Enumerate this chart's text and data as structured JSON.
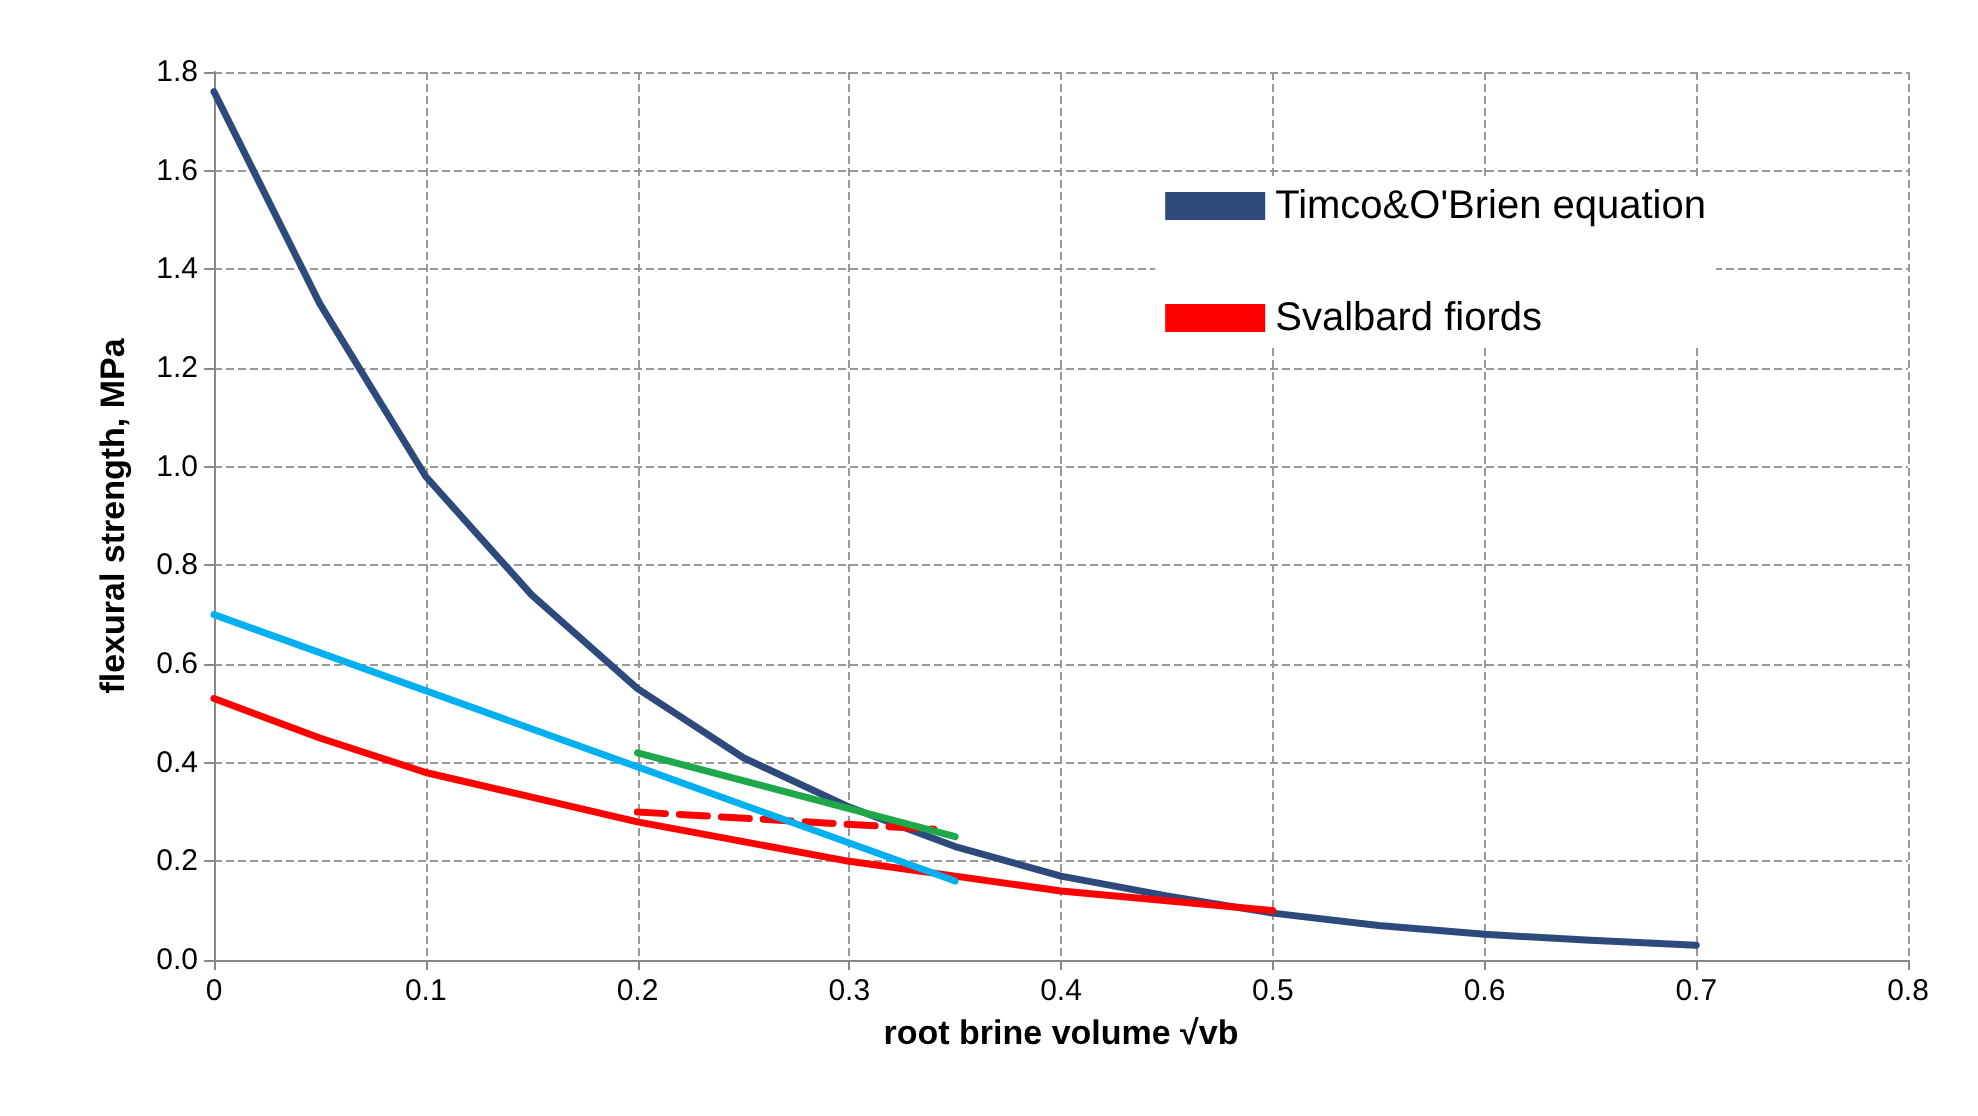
{
  "chart_data": {
    "type": "line",
    "xlabel": "root brine volume √vb",
    "ylabel": "flexural strength, MPa",
    "xlim": [
      0,
      0.8
    ],
    "xticks": [
      0,
      0.1,
      0.2,
      0.3,
      0.4,
      0.5,
      0.6,
      0.7,
      0.8
    ],
    "ylim": [
      0,
      1.8
    ],
    "yticks": [
      {
        "value": 0,
        "label": "0.0"
      },
      0.2,
      0.4,
      0.6,
      0.8,
      {
        "value": 1,
        "label": "1.0"
      },
      1.2,
      1.4,
      1.6,
      1.8
    ],
    "grid": true,
    "legend": "top right",
    "marker": "none",
    "line_style": "solid",
    "series": [
      {
        "name": "Timco&O'Brien equation",
        "color": "#2e4a7d",
        "x": [
          0,
          0.05,
          0.1,
          0.15,
          0.2,
          0.25,
          0.3,
          0.35,
          0.4,
          0.45,
          0.5,
          0.55,
          0.6,
          0.65,
          0.7
        ],
        "values": [
          1.76,
          1.33,
          0.98,
          0.74,
          0.55,
          0.41,
          0.31,
          0.23,
          0.17,
          0.13,
          0.095,
          0.07,
          0.052,
          0.04,
          0.03
        ]
      },
      {
        "name": "Svalbard fiords",
        "color": "#ff0000",
        "x": [
          0,
          0.05,
          0.1,
          0.15,
          0.2,
          0.25,
          0.3,
          0.35,
          0.4,
          0.45,
          0.5
        ],
        "values": [
          0.53,
          0.45,
          0.38,
          0.33,
          0.28,
          0.24,
          0.2,
          0.17,
          0.14,
          0.12,
          0.1
        ]
      },
      {
        "color": "#ff0000",
        "line_style": "dashed",
        "x": [
          0.2,
          0.34
        ],
        "values": [
          0.3,
          0.265
        ]
      },
      {
        "color": "#00b0f0",
        "x": [
          0,
          0.35
        ],
        "values": [
          0.7,
          0.16
        ]
      },
      {
        "color": "#1fa84a",
        "x": [
          0.2,
          0.35
        ],
        "values": [
          0.42,
          0.25
        ]
      }
    ]
  }
}
